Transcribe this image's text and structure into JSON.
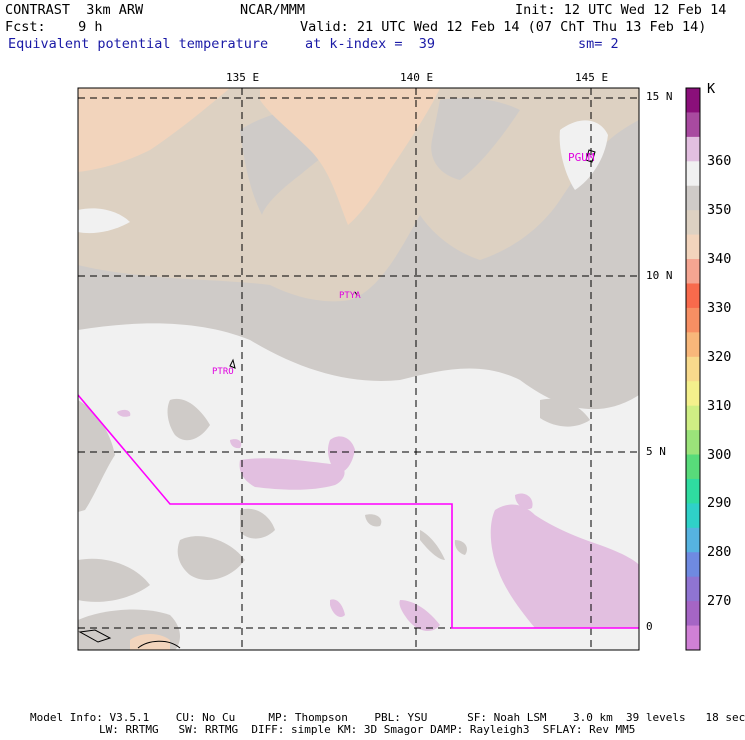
{
  "header": {
    "model": "CONTRAST  3km ARW",
    "org": "NCAR/MMM",
    "init": "Init: 12 UTC Wed 12 Feb 14",
    "fcst": "Fcst:    9 h",
    "valid": "Valid: 21 UTC Wed 12 Feb 14 (07 ChT Thu 13 Feb 14)",
    "field": "Equivalent potential temperature",
    "level": "at k-index =  39",
    "smooth": "sm= 2"
  },
  "map": {
    "lon_labels": [
      "135 E",
      "140 E",
      "145 E"
    ],
    "lat_labels": [
      "15 N",
      "10 N",
      "5 N",
      "0"
    ],
    "stations": [
      "PGUM",
      "PTYA",
      "PTRO"
    ]
  },
  "colorbar": {
    "unit": "K",
    "labels": [
      "360",
      "350",
      "340",
      "330",
      "320",
      "310",
      "300",
      "290",
      "280",
      "270"
    ],
    "colors": [
      "#8a0f7a",
      "#a84aa0",
      "#e2bfe0",
      "#f1f1f1",
      "#cfcbc8",
      "#ddd1c2",
      "#f2d4bc",
      "#f5a591",
      "#f86a4c",
      "#f78f63",
      "#f8b77a",
      "#f8da8c",
      "#f4f08c",
      "#cfee84",
      "#9be37a",
      "#58db7a",
      "#2fdca0",
      "#2fd1c8",
      "#56b3e0",
      "#6f8ae1",
      "#8f74d2",
      "#a565c5",
      "#d080d6"
    ]
  },
  "footer": {
    "line1": "Model Info: V3.5.1    CU: No Cu     MP: Thompson    PBL: YSU      SF: Noah LSM    3.0 km  39 levels   18 sec",
    "line2": "LW: RRTMG   SW: RRTMG  DIFF: simple KM: 3D Smagor DAMP: Rayleigh3  SFLAY: Rev MM5"
  }
}
